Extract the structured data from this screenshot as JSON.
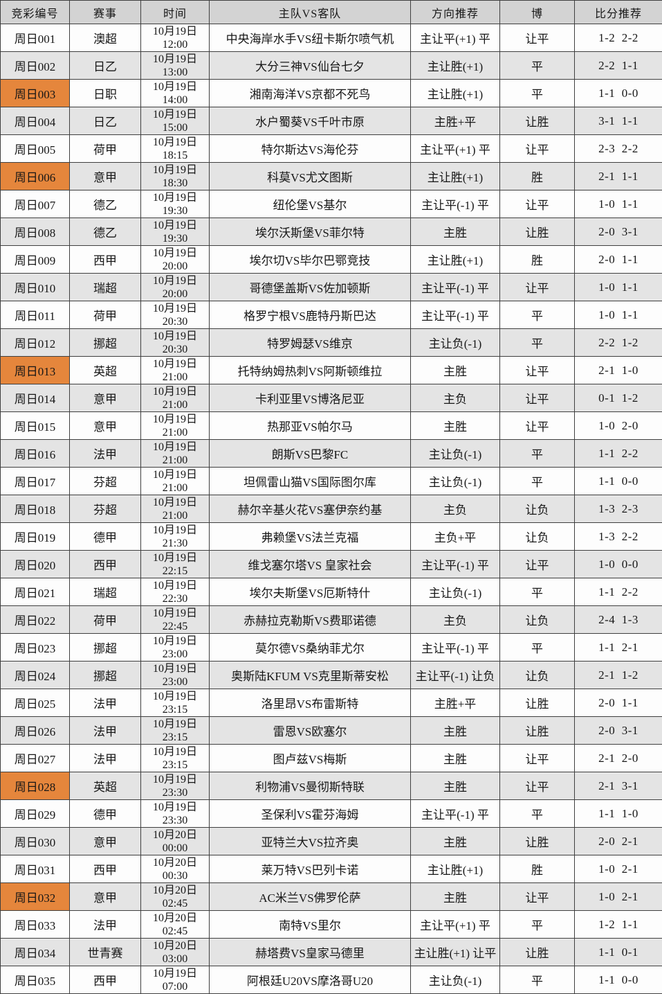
{
  "table": {
    "columns": [
      "竞彩编号",
      "赛事",
      "时间",
      "主队VS客队",
      "方向推荐",
      "博",
      "比分推荐"
    ],
    "rows": [
      {
        "id": "周日001",
        "league": "澳超",
        "date": "10月19日",
        "time": "12:00",
        "match": "中央海岸水手VS纽卡斯尔喷气机",
        "direction": "主让平(+1) 平",
        "bet": "让平",
        "scores": [
          "1-2",
          "2-2"
        ],
        "highlight": false
      },
      {
        "id": "周日002",
        "league": "日乙",
        "date": "10月19日",
        "time": "13:00",
        "match": "大分三神VS仙台七夕",
        "direction": "主让胜(+1)",
        "bet": "平",
        "scores": [
          "2-2",
          "1-1"
        ],
        "highlight": false
      },
      {
        "id": "周日003",
        "league": "日职",
        "date": "10月19日",
        "time": "14:00",
        "match": "湘南海洋VS京都不死鸟",
        "direction": "主让胜(+1)",
        "bet": "平",
        "scores": [
          "1-1",
          "0-0"
        ],
        "highlight": true
      },
      {
        "id": "周日004",
        "league": "日乙",
        "date": "10月19日",
        "time": "15:00",
        "match": "水户蜀葵VS千叶市原",
        "direction": "主胜+平",
        "bet": "让胜",
        "scores": [
          "3-1",
          "1-1"
        ],
        "highlight": false
      },
      {
        "id": "周日005",
        "league": "荷甲",
        "date": "10月19日",
        "time": "18:15",
        "match": "特尔斯达VS海伦芬",
        "direction": "主让平(+1) 平",
        "bet": "让平",
        "scores": [
          "2-3",
          "2-2"
        ],
        "highlight": false
      },
      {
        "id": "周日006",
        "league": "意甲",
        "date": "10月19日",
        "time": "18:30",
        "match": "科莫VS尤文图斯",
        "direction": "主让胜(+1)",
        "bet": "胜",
        "scores": [
          "2-1",
          "1-1"
        ],
        "highlight": true
      },
      {
        "id": "周日007",
        "league": "德乙",
        "date": "10月19日",
        "time": "19:30",
        "match": "纽伦堡VS基尔",
        "direction": "主让平(-1) 平",
        "bet": "让平",
        "scores": [
          "1-0",
          "1-1"
        ],
        "highlight": false
      },
      {
        "id": "周日008",
        "league": "德乙",
        "date": "10月19日",
        "time": "19:30",
        "match": "埃尔沃斯堡VS菲尔特",
        "direction": "主胜",
        "bet": "让胜",
        "scores": [
          "2-0",
          "3-1"
        ],
        "highlight": false
      },
      {
        "id": "周日009",
        "league": "西甲",
        "date": "10月19日",
        "time": "20:00",
        "match": "埃尔切VS毕尔巴鄂竞技",
        "direction": "主让胜(+1)",
        "bet": "胜",
        "scores": [
          "2-0",
          "1-1"
        ],
        "highlight": false
      },
      {
        "id": "周日010",
        "league": "瑞超",
        "date": "10月19日",
        "time": "20:00",
        "match": "哥德堡盖斯VS佐加顿斯",
        "direction": "主让平(-1) 平",
        "bet": "让平",
        "scores": [
          "1-0",
          "1-1"
        ],
        "highlight": false
      },
      {
        "id": "周日011",
        "league": "荷甲",
        "date": "10月19日",
        "time": "20:30",
        "match": "格罗宁根VS鹿特丹斯巴达",
        "direction": "主让平(-1) 平",
        "bet": "平",
        "scores": [
          "1-0",
          "1-1"
        ],
        "highlight": false
      },
      {
        "id": "周日012",
        "league": "挪超",
        "date": "10月19日",
        "time": "20:30",
        "match": "特罗姆瑟VS维京",
        "direction": "主让负(-1)",
        "bet": "平",
        "scores": [
          "2-2",
          "1-2"
        ],
        "highlight": false
      },
      {
        "id": "周日013",
        "league": "英超",
        "date": "10月19日",
        "time": "21:00",
        "match": "托特纳姆热刺VS阿斯顿维拉",
        "direction": "主胜",
        "bet": "让平",
        "scores": [
          "2-1",
          "1-0"
        ],
        "highlight": true
      },
      {
        "id": "周日014",
        "league": "意甲",
        "date": "10月19日",
        "time": "21:00",
        "match": "卡利亚里VS博洛尼亚",
        "direction": "主负",
        "bet": "让平",
        "scores": [
          "0-1",
          "1-2"
        ],
        "highlight": false
      },
      {
        "id": "周日015",
        "league": "意甲",
        "date": "10月19日",
        "time": "21:00",
        "match": "热那亚VS帕尔马",
        "direction": "主胜",
        "bet": "让平",
        "scores": [
          "1-0",
          "2-0"
        ],
        "highlight": false
      },
      {
        "id": "周日016",
        "league": "法甲",
        "date": "10月19日",
        "time": "21:00",
        "match": "朗斯VS巴黎FC",
        "direction": "主让负(-1)",
        "bet": "平",
        "scores": [
          "1-1",
          "2-2"
        ],
        "highlight": false
      },
      {
        "id": "周日017",
        "league": "芬超",
        "date": "10月19日",
        "time": "21:00",
        "match": "坦佩雷山猫VS国际图尔库",
        "direction": "主让负(-1)",
        "bet": "平",
        "scores": [
          "1-1",
          "0-0"
        ],
        "highlight": false
      },
      {
        "id": "周日018",
        "league": "芬超",
        "date": "10月19日",
        "time": "21:00",
        "match": "赫尔辛基火花VS塞伊奈约基",
        "direction": "主负",
        "bet": "让负",
        "scores": [
          "1-3",
          "2-3"
        ],
        "highlight": false
      },
      {
        "id": "周日019",
        "league": "德甲",
        "date": "10月19日",
        "time": "21:30",
        "match": "弗赖堡VS法兰克福",
        "direction": "主负+平",
        "bet": "让负",
        "scores": [
          "1-3",
          "2-2"
        ],
        "highlight": false
      },
      {
        "id": "周日020",
        "league": "西甲",
        "date": "10月19日",
        "time": "22:15",
        "match": "维戈塞尔塔VS 皇家社会",
        "direction": "主让平(-1) 平",
        "bet": "让平",
        "scores": [
          "1-0",
          "0-0"
        ],
        "highlight": false
      },
      {
        "id": "周日021",
        "league": "瑞超",
        "date": "10月19日",
        "time": "22:30",
        "match": "埃尔夫斯堡VS厄斯特什",
        "direction": "主让负(-1)",
        "bet": "平",
        "scores": [
          "1-1",
          "2-2"
        ],
        "highlight": false
      },
      {
        "id": "周日022",
        "league": "荷甲",
        "date": "10月19日",
        "time": "22:45",
        "match": "赤赫拉克勒斯VS费耶诺德",
        "direction": "主负",
        "bet": "让负",
        "scores": [
          "2-4",
          "1-3"
        ],
        "highlight": false
      },
      {
        "id": "周日023",
        "league": "挪超",
        "date": "10月19日",
        "time": "23:00",
        "match": "莫尔德VS桑纳菲尤尔",
        "direction": "主让平(-1) 平",
        "bet": "平",
        "scores": [
          "1-1",
          "2-1"
        ],
        "highlight": false
      },
      {
        "id": "周日024",
        "league": "挪超",
        "date": "10月19日",
        "time": "23:00",
        "match": "奥斯陆KFUM VS克里斯蒂安松",
        "direction": "主让平(-1) 让负",
        "bet": "让负",
        "scores": [
          "2-1",
          "1-2"
        ],
        "highlight": false
      },
      {
        "id": "周日025",
        "league": "法甲",
        "date": "10月19日",
        "time": "23:15",
        "match": "洛里昂VS布雷斯特",
        "direction": "主胜+平",
        "bet": "让胜",
        "scores": [
          "2-0",
          "1-1"
        ],
        "highlight": false
      },
      {
        "id": "周日026",
        "league": "法甲",
        "date": "10月19日",
        "time": "23:15",
        "match": "雷恩VS欧塞尔",
        "direction": "主胜",
        "bet": "让胜",
        "scores": [
          "2-0",
          "3-1"
        ],
        "highlight": false
      },
      {
        "id": "周日027",
        "league": "法甲",
        "date": "10月19日",
        "time": "23:15",
        "match": "图卢兹VS梅斯",
        "direction": "主胜",
        "bet": "让平",
        "scores": [
          "2-1",
          "2-0"
        ],
        "highlight": false
      },
      {
        "id": "周日028",
        "league": "英超",
        "date": "10月19日",
        "time": "23:30",
        "match": "利物浦VS曼彻斯特联",
        "direction": "主胜",
        "bet": "让平",
        "scores": [
          "2-1",
          "3-1"
        ],
        "highlight": true
      },
      {
        "id": "周日029",
        "league": "德甲",
        "date": "10月19日",
        "time": "23:30",
        "match": "圣保利VS霍芬海姆",
        "direction": "主让平(-1) 平",
        "bet": "平",
        "scores": [
          "1-1",
          "1-0"
        ],
        "highlight": false
      },
      {
        "id": "周日030",
        "league": "意甲",
        "date": "10月20日",
        "time": "00:00",
        "match": "亚特兰大VS拉齐奥",
        "direction": "主胜",
        "bet": "让胜",
        "scores": [
          "2-0",
          "2-1"
        ],
        "highlight": false
      },
      {
        "id": "周日031",
        "league": "西甲",
        "date": "10月20日",
        "time": "00:30",
        "match": "莱万特VS巴列卡诺",
        "direction": "主让胜(+1)",
        "bet": "胜",
        "scores": [
          "1-0",
          "2-1"
        ],
        "highlight": false
      },
      {
        "id": "周日032",
        "league": "意甲",
        "date": "10月20日",
        "time": "02:45",
        "match": "AC米兰VS佛罗伦萨",
        "direction": "主胜",
        "bet": "让平",
        "scores": [
          "1-0",
          "2-1"
        ],
        "highlight": true
      },
      {
        "id": "周日033",
        "league": "法甲",
        "date": "10月20日",
        "time": "02:45",
        "match": "南特VS里尔",
        "direction": "主让平(+1) 平",
        "bet": "平",
        "scores": [
          "1-2",
          "1-1"
        ],
        "highlight": false
      },
      {
        "id": "周日034",
        "league": "世青赛",
        "date": "10月20日",
        "time": "03:00",
        "match": "赫塔费VS皇家马德里",
        "direction": "主让胜(+1) 让平",
        "bet": "让胜",
        "scores": [
          "1-1",
          "0-1"
        ],
        "highlight": false
      },
      {
        "id": "周日035",
        "league": "西甲",
        "date": "10月19日",
        "time": "07:00",
        "match": "阿根廷U20VS摩洛哥U20",
        "direction": "主让负(-1)",
        "bet": "平",
        "scores": [
          "1-1",
          "0-0"
        ],
        "highlight": false
      }
    ]
  },
  "colors": {
    "highlight_orange": "#e5863c",
    "row_alt_gray": "#e4e4e4",
    "header_gray": "#d3d3d3",
    "border": "#3f3f3f"
  }
}
